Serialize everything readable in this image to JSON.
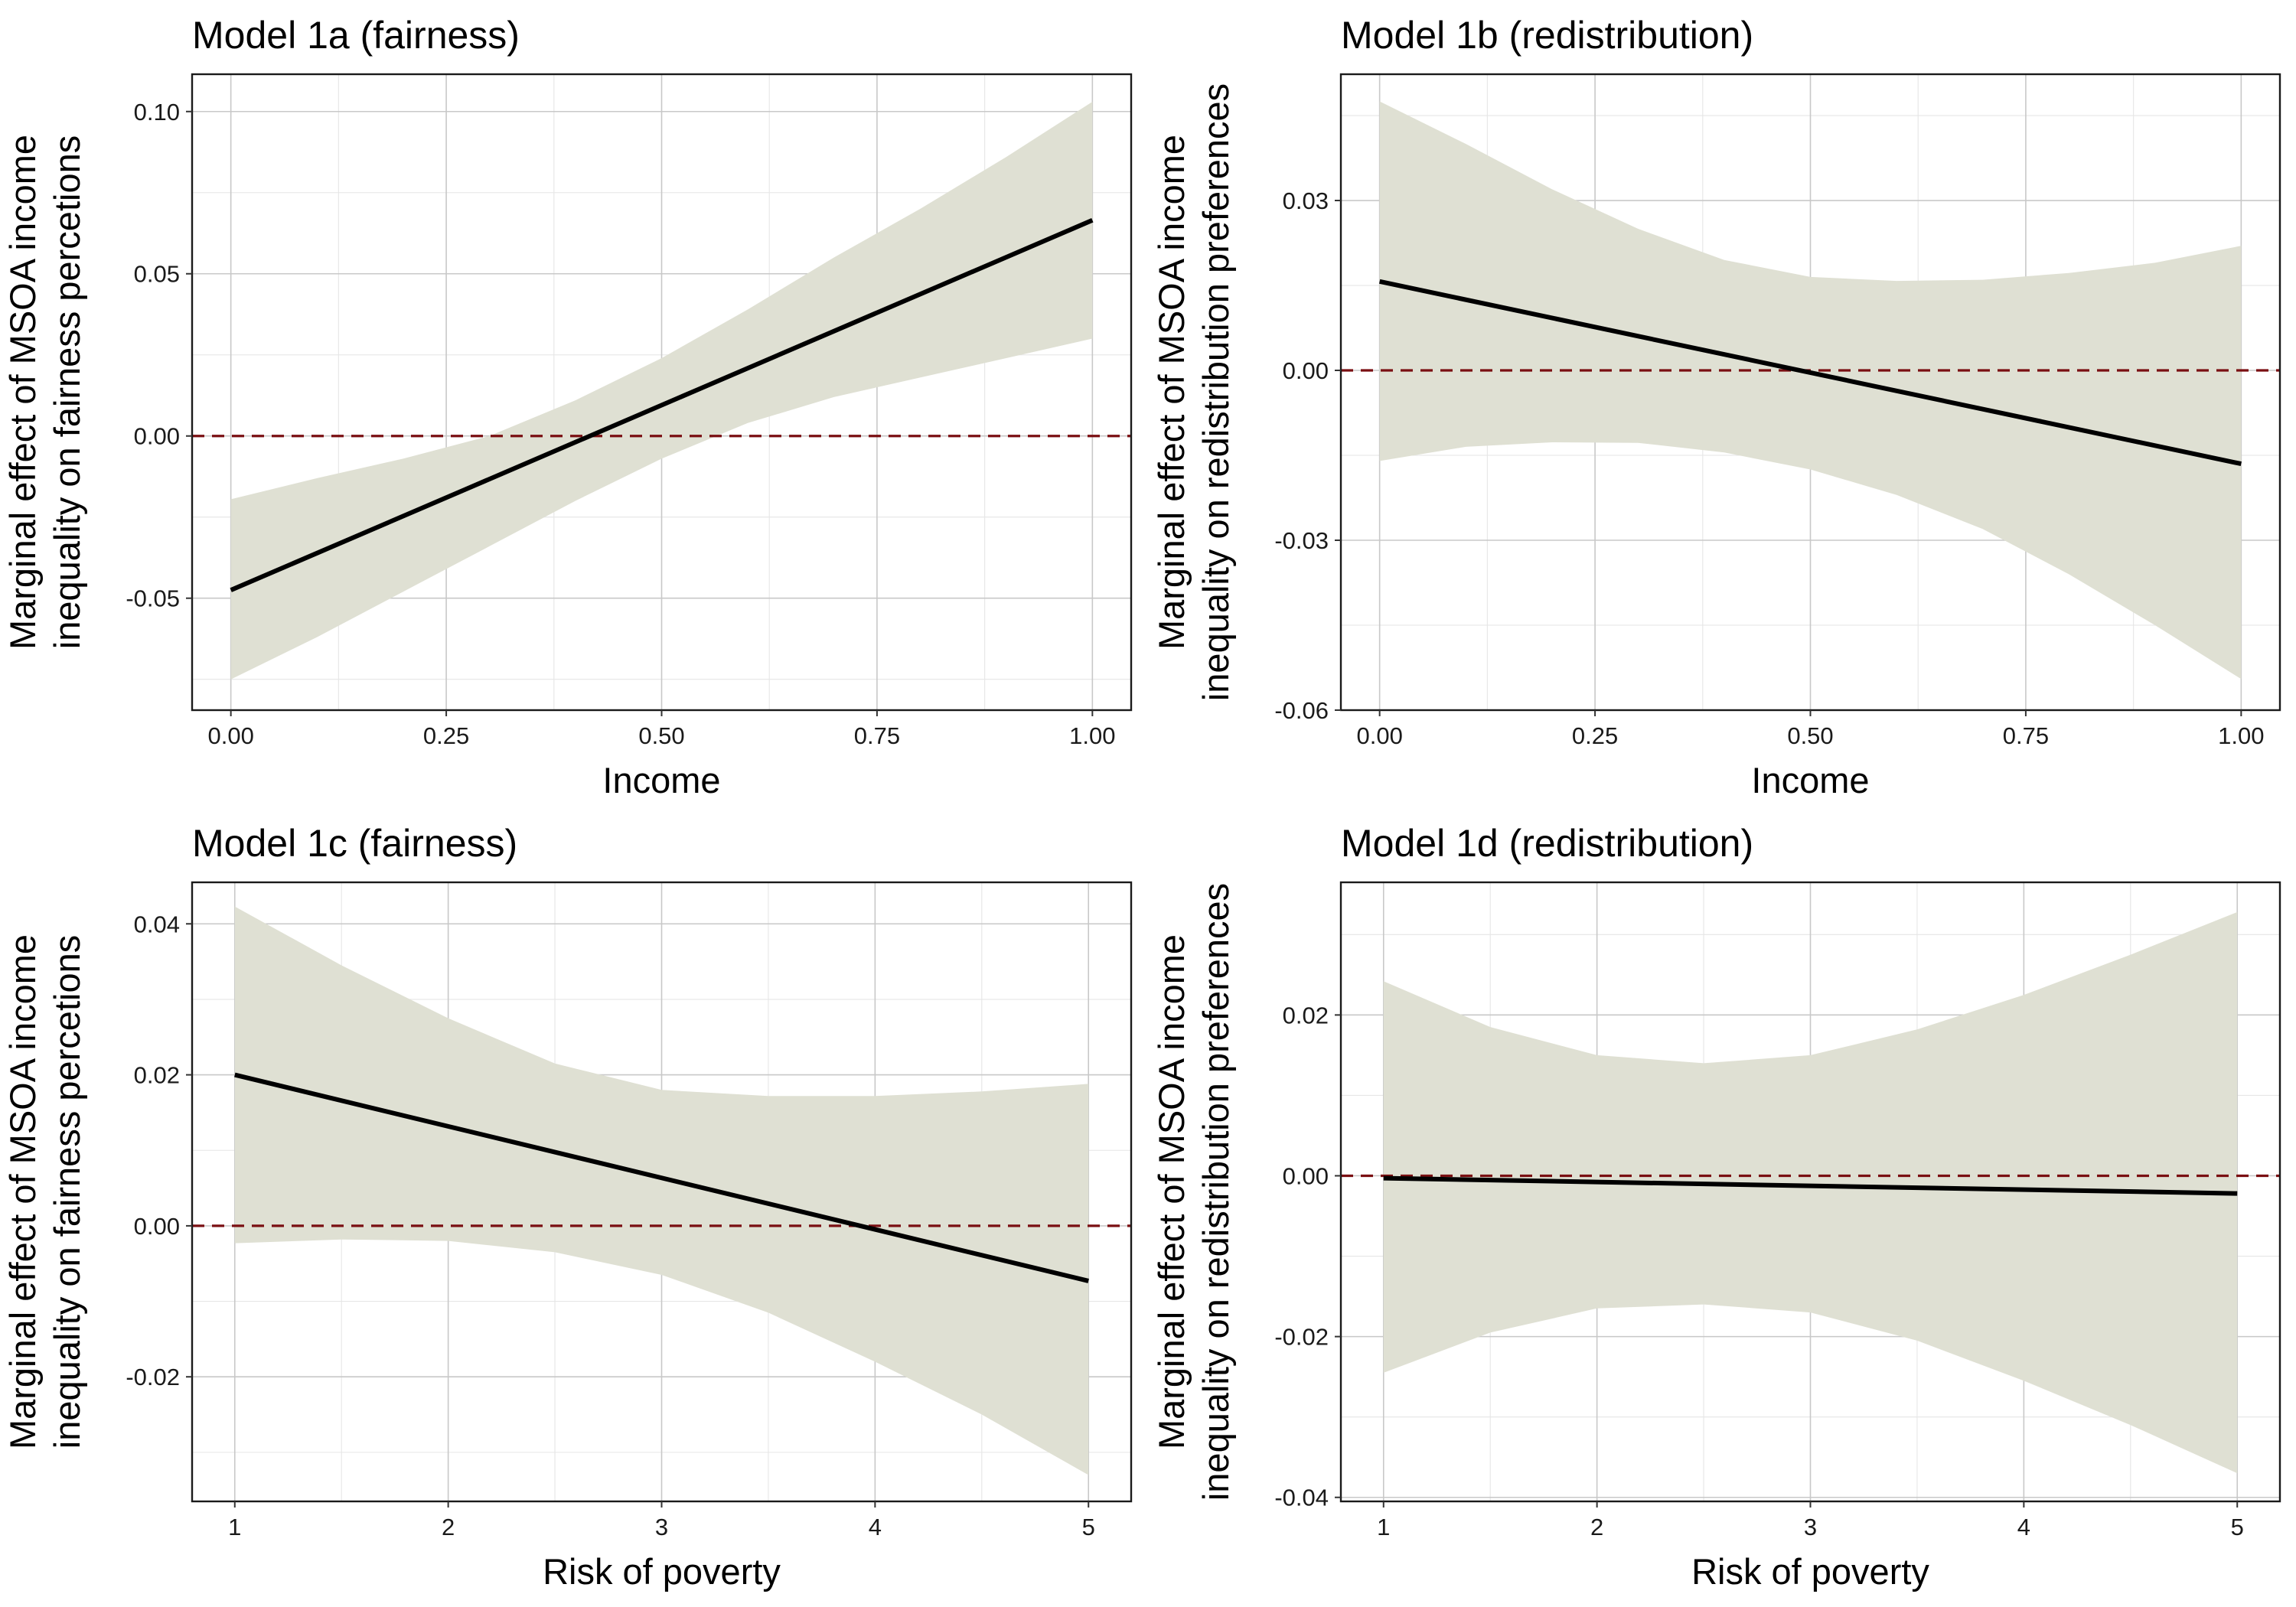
{
  "chart_data": [
    {
      "type": "area",
      "title": "Model 1a (fairness)",
      "xlabel": "Income",
      "ylabel": [
        "Marginal effect of MSOA income",
        "inequality on fairness percetions"
      ],
      "xlim": [
        -0.045,
        1.045
      ],
      "ylim": [
        -0.0845,
        0.1115
      ],
      "x_ticks": [
        0.0,
        0.25,
        0.5,
        0.75,
        1.0
      ],
      "x_tick_labels": [
        "0.00",
        "0.25",
        "0.50",
        "0.75",
        "1.00"
      ],
      "y_ticks": [
        -0.05,
        0.0,
        0.05,
        0.1
      ],
      "y_tick_labels": [
        "-0.05",
        "0.00",
        "0.05",
        "0.10"
      ],
      "reference_line": 0,
      "estimate": {
        "x": [
          0.0,
          1.0
        ],
        "y": [
          -0.0475,
          0.0665
        ]
      },
      "ci": {
        "x": [
          0.0,
          0.1,
          0.2,
          0.3,
          0.4,
          0.5,
          0.6,
          0.7,
          0.8,
          0.9,
          1.0
        ],
        "lower": [
          -0.075,
          -0.062,
          -0.048,
          -0.034,
          -0.02,
          -0.007,
          0.004,
          0.012,
          0.018,
          0.024,
          0.03
        ],
        "upper": [
          -0.0195,
          -0.013,
          -0.007,
          0.0,
          0.011,
          0.024,
          0.039,
          0.055,
          0.07,
          0.086,
          0.103
        ]
      }
    },
    {
      "type": "area",
      "title": "Model 1b (redistribution)",
      "xlabel": "Income",
      "ylabel": [
        "Marginal effect of MSOA income",
        "inequality on redistribution preferences"
      ],
      "xlim": [
        -0.045,
        1.045
      ],
      "ylim": [
        -0.06,
        0.0523
      ],
      "x_ticks": [
        0.0,
        0.25,
        0.5,
        0.75,
        1.0
      ],
      "x_tick_labels": [
        "0.00",
        "0.25",
        "0.50",
        "0.75",
        "1.00"
      ],
      "y_ticks": [
        -0.06,
        -0.03,
        0.0,
        0.03
      ],
      "y_tick_labels": [
        "-0.06",
        "-0.03",
        "0.00",
        "0.03"
      ],
      "reference_line": 0,
      "estimate": {
        "x": [
          0.0,
          1.0
        ],
        "y": [
          0.0157,
          -0.0165
        ]
      },
      "ci": {
        "x": [
          0.0,
          0.1,
          0.2,
          0.3,
          0.4,
          0.5,
          0.6,
          0.7,
          0.8,
          0.9,
          1.0
        ],
        "lower": [
          -0.016,
          -0.0135,
          -0.0127,
          -0.0128,
          -0.0145,
          -0.0175,
          -0.022,
          -0.028,
          -0.036,
          -0.045,
          -0.0545
        ],
        "upper": [
          0.0475,
          0.04,
          0.032,
          0.025,
          0.0195,
          0.0165,
          0.0158,
          0.016,
          0.0172,
          0.019,
          0.022
        ]
      }
    },
    {
      "type": "area",
      "title": "Model 1c (fairness)",
      "xlabel": "Risk of poverty",
      "ylabel": [
        "Marginal effect of MSOA income",
        "inequality on fairness percetions"
      ],
      "xlim": [
        0.8,
        5.2
      ],
      "ylim": [
        -0.0365,
        0.0455
      ],
      "x_ticks": [
        1,
        2,
        3,
        4,
        5
      ],
      "x_tick_labels": [
        "1",
        "2",
        "3",
        "4",
        "5"
      ],
      "y_ticks": [
        -0.02,
        0.0,
        0.02,
        0.04
      ],
      "y_tick_labels": [
        "-0.02",
        "0.00",
        "0.02",
        "0.04"
      ],
      "reference_line": 0,
      "estimate": {
        "x": [
          1,
          5
        ],
        "y": [
          0.02,
          -0.0073
        ]
      },
      "ci": {
        "x": [
          1.0,
          1.5,
          2.0,
          2.5,
          3.0,
          3.5,
          4.0,
          4.5,
          5.0
        ],
        "lower": [
          -0.0023,
          -0.0018,
          -0.002,
          -0.0035,
          -0.0065,
          -0.0115,
          -0.018,
          -0.025,
          -0.033
        ],
        "upper": [
          0.0423,
          0.0345,
          0.0275,
          0.0215,
          0.018,
          0.0172,
          0.0172,
          0.0178,
          0.0188
        ]
      }
    },
    {
      "type": "area",
      "title": "Model 1d (redistribution)",
      "xlabel": "Risk of poverty",
      "ylabel": [
        "Marginal effect of MSOA income",
        "inequality on redistribution preferences"
      ],
      "xlim": [
        0.8,
        5.2
      ],
      "ylim": [
        -0.0405,
        0.0365
      ],
      "x_ticks": [
        1,
        2,
        3,
        4,
        5
      ],
      "x_tick_labels": [
        "1",
        "2",
        "3",
        "4",
        "5"
      ],
      "y_ticks": [
        -0.04,
        -0.02,
        0.0,
        0.02
      ],
      "y_tick_labels": [
        "-0.04",
        "-0.02",
        "0.00",
        "0.02"
      ],
      "reference_line": 0,
      "estimate": {
        "x": [
          1,
          5
        ],
        "y": [
          -0.0003,
          -0.0022
        ]
      },
      "ci": {
        "x": [
          1.0,
          1.5,
          2.0,
          2.5,
          3.0,
          3.5,
          4.0,
          4.5,
          5.0
        ],
        "lower": [
          -0.0245,
          -0.0195,
          -0.0165,
          -0.016,
          -0.017,
          -0.0205,
          -0.0255,
          -0.031,
          -0.037
        ],
        "upper": [
          0.0242,
          0.0185,
          0.015,
          0.014,
          0.015,
          0.0182,
          0.0225,
          0.0275,
          0.0328
        ]
      }
    }
  ],
  "colors": {
    "ribbon": "#dfe0d3",
    "estimate_line": "#000000",
    "reference_line": "#7a0f12"
  }
}
